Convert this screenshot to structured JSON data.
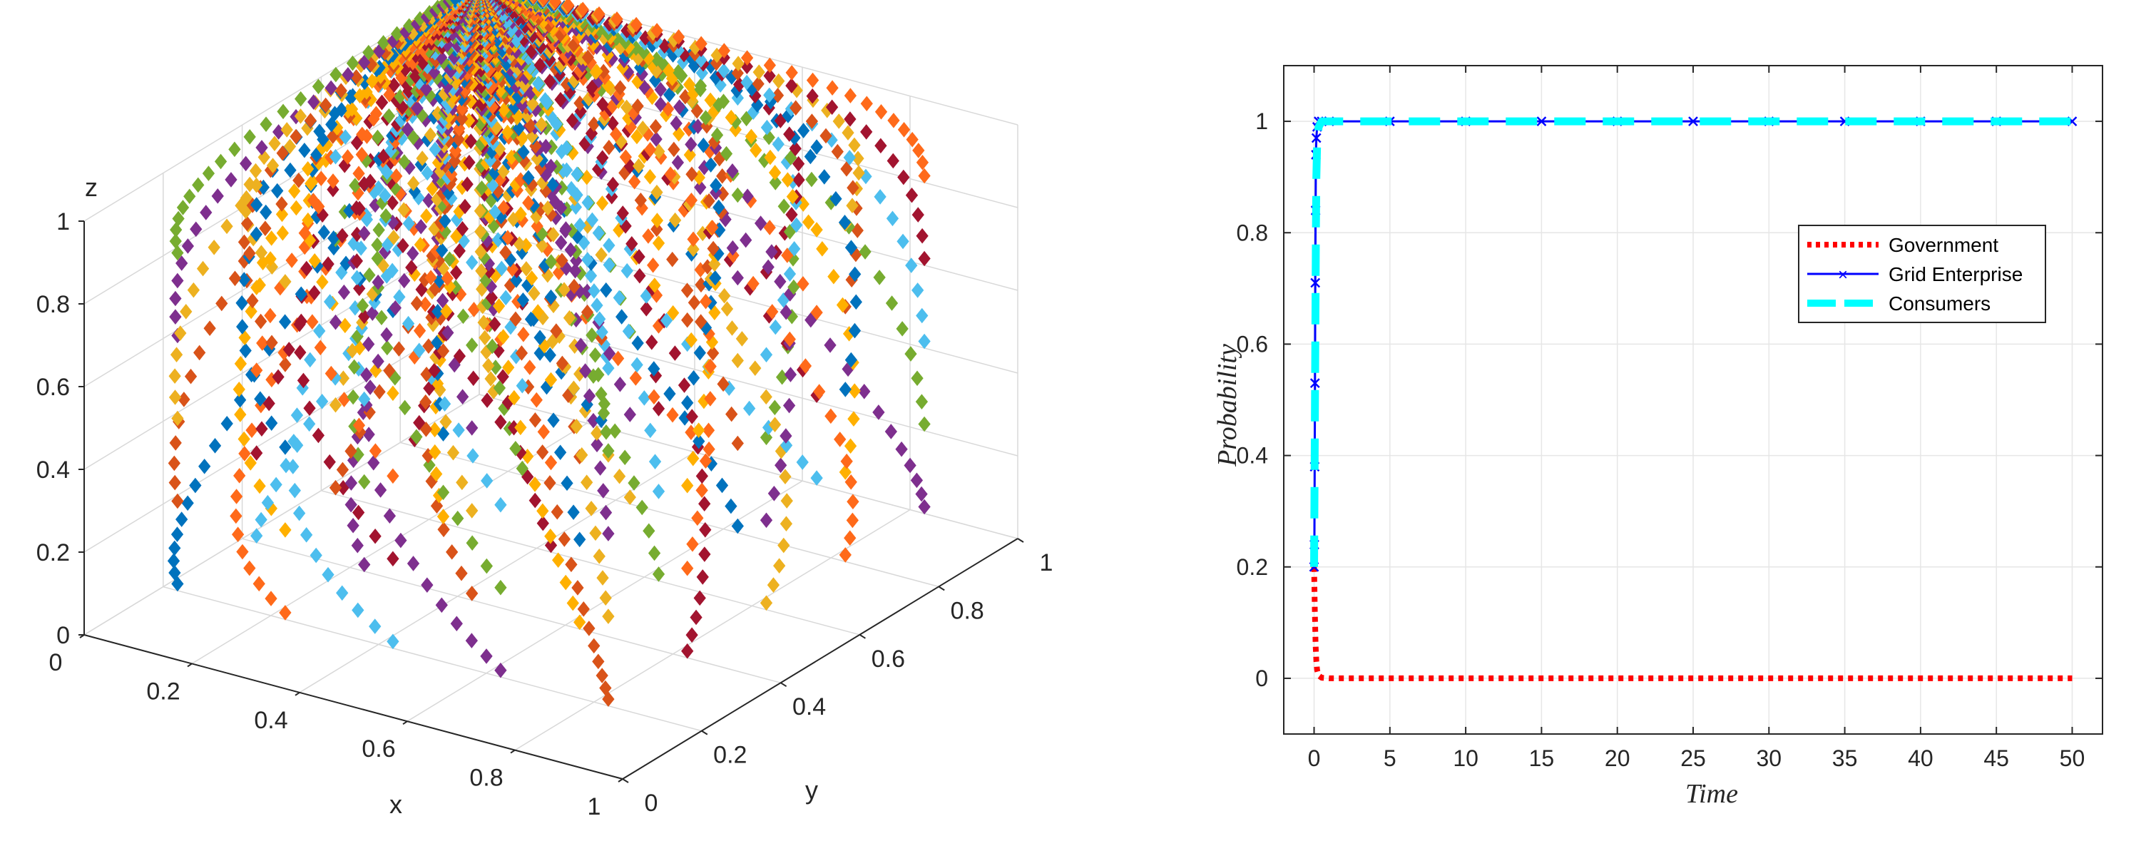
{
  "chart_data": [
    {
      "type": "scatter3d",
      "title": "",
      "xlabel": "x",
      "ylabel": "y",
      "zlabel": "z",
      "xlim": [
        0,
        1
      ],
      "ylim": [
        0,
        1
      ],
      "zlim": [
        0,
        1
      ],
      "xticks": [
        "0",
        "0.2",
        "0.4",
        "0.6",
        "0.8",
        "1"
      ],
      "yticks": [
        "0",
        "0.2",
        "0.4",
        "0.6",
        "0.8",
        "1"
      ],
      "zticks": [
        "0",
        "0.2",
        "0.4",
        "0.6",
        "0.8",
        "1"
      ],
      "grid": true,
      "marker": "diamond",
      "trajectory_colors": [
        "#0072BD",
        "#D95319",
        "#EDB120",
        "#7E2F8E",
        "#77AC30",
        "#4DBEEE",
        "#A2142F",
        "#FF6A1A",
        "#FFB000"
      ],
      "initial_values": [
        0.1,
        0.3,
        0.5,
        0.7,
        0.9
      ],
      "trajectory_count": 125,
      "description_of_convergence": "all trajectories converge toward x=0, y=1, z=1"
    },
    {
      "type": "line",
      "title": "",
      "xlabel": "Time",
      "ylabel": "Probability",
      "xlim": [
        -2,
        52
      ],
      "ylim": [
        -0.1,
        1.1
      ],
      "xticks": [
        "0",
        "5",
        "10",
        "15",
        "20",
        "25",
        "30",
        "35",
        "40",
        "45",
        "50"
      ],
      "yticks": [
        "0",
        "0.2",
        "0.4",
        "0.6",
        "0.8",
        "1"
      ],
      "grid": true,
      "legend_position": "upper-right",
      "series": [
        {
          "name": "Government",
          "color": "#FF0000",
          "style": "dotted",
          "x": [
            0,
            0.05,
            0.1,
            0.15,
            0.2,
            0.3,
            0.5,
            1,
            50
          ],
          "values": [
            0.2,
            0.12,
            0.06,
            0.03,
            0.015,
            0.005,
            0.001,
            0,
            0
          ]
        },
        {
          "name": "Grid Enterprise",
          "color": "#0000FF",
          "style": "solid-x-markers",
          "x": [
            0,
            0.02,
            0.04,
            0.06,
            0.08,
            0.1,
            0.12,
            0.15,
            0.2,
            0.3,
            0.5,
            1,
            5,
            10,
            15,
            20,
            25,
            30,
            35,
            40,
            45,
            50
          ],
          "values": [
            0.2,
            0.24,
            0.38,
            0.53,
            0.71,
            0.84,
            0.94,
            0.97,
            0.99,
            1,
            1,
            1,
            1,
            1,
            1,
            1,
            1,
            1,
            1,
            1,
            1,
            1
          ]
        },
        {
          "name": "Consumers",
          "color": "#00FFFF",
          "style": "dashed",
          "x": [
            0,
            0.03,
            0.06,
            0.09,
            0.12,
            0.15,
            0.2,
            0.3,
            0.5,
            1,
            50
          ],
          "values": [
            0.2,
            0.35,
            0.5,
            0.65,
            0.8,
            0.9,
            0.96,
            0.99,
            1,
            1,
            1
          ]
        }
      ]
    }
  ]
}
